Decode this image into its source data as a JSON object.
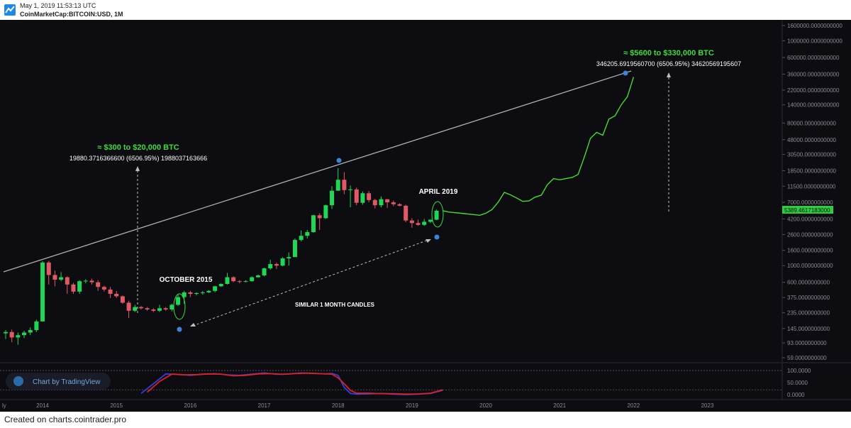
{
  "header": {
    "timestamp": "May 1, 2019 11:53:13 UTC",
    "symbol": "CoinMarketCap:BITCOIN:USD, 1M"
  },
  "footer": {
    "text": "Created on charts.cointrader.pro"
  },
  "watermark": {
    "label": "Chart by TradingView"
  },
  "colors": {
    "background": "#0c0c11",
    "up_candle": "#1fd655",
    "down_candle": "#e05a66",
    "projection": "#44dd2c",
    "trendline": "#b0b0b0",
    "marker": "#3f83d6",
    "annotation_green": "#3ddc3d",
    "stoch_k": "#2f3fe0",
    "stoch_d": "#e02020",
    "price_label": "#2ecc40"
  },
  "chart_data": {
    "type": "candlestick",
    "scale": "log",
    "y_axis_labels": [
      "1600000.0000000000",
      "1000000.0000000000",
      "600000.0000000000",
      "360000.0000000000",
      "220000.0000000000",
      "140000.0000000000",
      "80000.0000000000",
      "48000.0000000000",
      "30500.0000000000",
      "18500.0000000000",
      "11500.0000000000",
      "7000.0000000000",
      "4200.0000000000",
      "2600.0000000000",
      "1600.0000000000",
      "1000.0000000000",
      "600.0000000000",
      "375.0000000000",
      "235.0000000000",
      "145.0000000000",
      "93.0000000000",
      "59.0000000000"
    ],
    "x_axis_labels": [
      "2014",
      "2015",
      "2016",
      "2017",
      "2018",
      "2019",
      "2020",
      "2021",
      "2022",
      "2023"
    ],
    "x_left_partial_label": "ly",
    "last_price_label": "5389.4617183000",
    "annotations": {
      "top_right_title": "≈ $5600 to $330,000 BTC",
      "top_right_measure": "346205.6919560700 (6506.95%) 34620569195607",
      "left_title": "≈ $300 to $20,000 BTC",
      "left_measure": "19880.3716366600 (6506.95%) 1988037163666",
      "october_2015": "OCTOBER 2015",
      "april_2019": "APRIL 2019",
      "similar_candles": "SIMILAR 1 MONTH CANDLES"
    },
    "candles": [
      {
        "o": 125,
        "h": 138,
        "l": 105,
        "c": 130
      },
      {
        "o": 130,
        "h": 140,
        "l": 95,
        "c": 110
      },
      {
        "o": 110,
        "h": 128,
        "l": 88,
        "c": 118
      },
      {
        "o": 118,
        "h": 135,
        "l": 108,
        "c": 128
      },
      {
        "o": 128,
        "h": 150,
        "l": 118,
        "c": 138
      },
      {
        "o": 138,
        "h": 190,
        "l": 130,
        "c": 180
      },
      {
        "o": 180,
        "h": 1150,
        "l": 180,
        "c": 1100
      },
      {
        "o": 1100,
        "h": 1160,
        "l": 560,
        "c": 750
      },
      {
        "o": 750,
        "h": 860,
        "l": 530,
        "c": 650
      },
      {
        "o": 650,
        "h": 820,
        "l": 620,
        "c": 700
      },
      {
        "o": 700,
        "h": 720,
        "l": 420,
        "c": 560
      },
      {
        "o": 560,
        "h": 590,
        "l": 420,
        "c": 450
      },
      {
        "o": 450,
        "h": 640,
        "l": 420,
        "c": 620
      },
      {
        "o": 620,
        "h": 660,
        "l": 580,
        "c": 630
      },
      {
        "o": 630,
        "h": 670,
        "l": 560,
        "c": 600
      },
      {
        "o": 600,
        "h": 640,
        "l": 460,
        "c": 520
      },
      {
        "o": 520,
        "h": 540,
        "l": 450,
        "c": 480
      },
      {
        "o": 480,
        "h": 520,
        "l": 370,
        "c": 420
      },
      {
        "o": 420,
        "h": 460,
        "l": 370,
        "c": 390
      },
      {
        "o": 390,
        "h": 400,
        "l": 310,
        "c": 320
      },
      {
        "o": 320,
        "h": 340,
        "l": 200,
        "c": 250
      },
      {
        "o": 250,
        "h": 300,
        "l": 240,
        "c": 280
      },
      {
        "o": 280,
        "h": 290,
        "l": 260,
        "c": 270
      },
      {
        "o": 270,
        "h": 280,
        "l": 250,
        "c": 260
      },
      {
        "o": 260,
        "h": 270,
        "l": 240,
        "c": 250
      },
      {
        "o": 250,
        "h": 300,
        "l": 240,
        "c": 270
      },
      {
        "o": 270,
        "h": 280,
        "l": 250,
        "c": 260
      },
      {
        "o": 260,
        "h": 310,
        "l": 245,
        "c": 300
      },
      {
        "o": 300,
        "h": 420,
        "l": 290,
        "c": 380
      },
      {
        "o": 380,
        "h": 460,
        "l": 310,
        "c": 440
      },
      {
        "o": 440,
        "h": 460,
        "l": 380,
        "c": 420
      },
      {
        "o": 420,
        "h": 440,
        "l": 400,
        "c": 430
      },
      {
        "o": 430,
        "h": 460,
        "l": 410,
        "c": 440
      },
      {
        "o": 440,
        "h": 470,
        "l": 430,
        "c": 460
      },
      {
        "o": 460,
        "h": 540,
        "l": 440,
        "c": 530
      },
      {
        "o": 530,
        "h": 580,
        "l": 520,
        "c": 570
      },
      {
        "o": 570,
        "h": 800,
        "l": 560,
        "c": 700
      },
      {
        "o": 700,
        "h": 720,
        "l": 600,
        "c": 620
      },
      {
        "o": 620,
        "h": 640,
        "l": 580,
        "c": 610
      },
      {
        "o": 610,
        "h": 640,
        "l": 600,
        "c": 620
      },
      {
        "o": 620,
        "h": 720,
        "l": 610,
        "c": 700
      },
      {
        "o": 700,
        "h": 760,
        "l": 690,
        "c": 740
      },
      {
        "o": 740,
        "h": 940,
        "l": 720,
        "c": 920
      },
      {
        "o": 920,
        "h": 1200,
        "l": 880,
        "c": 1050
      },
      {
        "o": 1050,
        "h": 1100,
        "l": 900,
        "c": 1000
      },
      {
        "o": 1000,
        "h": 1300,
        "l": 980,
        "c": 1250
      },
      {
        "o": 1250,
        "h": 1500,
        "l": 1000,
        "c": 1300
      },
      {
        "o": 1300,
        "h": 2300,
        "l": 1300,
        "c": 2200
      },
      {
        "o": 2200,
        "h": 2950,
        "l": 2100,
        "c": 2500
      },
      {
        "o": 2500,
        "h": 3000,
        "l": 2300,
        "c": 2800
      },
      {
        "o": 2800,
        "h": 4800,
        "l": 2750,
        "c": 4700
      },
      {
        "o": 4700,
        "h": 5000,
        "l": 3000,
        "c": 4300
      },
      {
        "o": 4300,
        "h": 6500,
        "l": 4200,
        "c": 6400
      },
      {
        "o": 6400,
        "h": 11500,
        "l": 5700,
        "c": 10000
      },
      {
        "o": 10000,
        "h": 20000,
        "l": 10000,
        "c": 14000
      },
      {
        "o": 14000,
        "h": 17700,
        "l": 9000,
        "c": 10200
      },
      {
        "o": 10200,
        "h": 11700,
        "l": 6000,
        "c": 10400
      },
      {
        "o": 10400,
        "h": 11000,
        "l": 6400,
        "c": 6900
      },
      {
        "o": 6900,
        "h": 9800,
        "l": 6500,
        "c": 9250
      },
      {
        "o": 9250,
        "h": 9900,
        "l": 7000,
        "c": 7500
      },
      {
        "o": 7500,
        "h": 7800,
        "l": 5800,
        "c": 6400
      },
      {
        "o": 6400,
        "h": 8400,
        "l": 6000,
        "c": 7700
      },
      {
        "o": 7700,
        "h": 7700,
        "l": 5900,
        "c": 7000
      },
      {
        "o": 7000,
        "h": 7400,
        "l": 6200,
        "c": 6600
      },
      {
        "o": 6600,
        "h": 6800,
        "l": 6200,
        "c": 6300
      },
      {
        "o": 6300,
        "h": 6500,
        "l": 3800,
        "c": 4000
      },
      {
        "o": 4000,
        "h": 4300,
        "l": 3200,
        "c": 3700
      },
      {
        "o": 3700,
        "h": 4100,
        "l": 3400,
        "c": 3500
      },
      {
        "o": 3500,
        "h": 4200,
        "l": 3400,
        "c": 3850
      },
      {
        "o": 3850,
        "h": 4100,
        "l": 3700,
        "c": 4100
      },
      {
        "o": 4100,
        "h": 5600,
        "l": 4050,
        "c": 5400
      }
    ],
    "projection": [
      [
        71,
        5400
      ],
      [
        72,
        5200
      ],
      [
        74,
        5000
      ],
      [
        76,
        4800
      ],
      [
        77,
        4700
      ],
      [
        78,
        5000
      ],
      [
        79,
        5600
      ],
      [
        80,
        7000
      ],
      [
        81,
        9500
      ],
      [
        82,
        8800
      ],
      [
        83,
        8000
      ],
      [
        84,
        7200
      ],
      [
        85,
        7300
      ],
      [
        86,
        8200
      ],
      [
        87,
        8700
      ],
      [
        88,
        12000
      ],
      [
        89,
        14500
      ],
      [
        90,
        14000
      ],
      [
        91,
        14500
      ],
      [
        92,
        15000
      ],
      [
        93,
        16500
      ],
      [
        94,
        28000
      ],
      [
        95,
        50000
      ],
      [
        96,
        60000
      ],
      [
        97,
        55000
      ],
      [
        98,
        90000
      ],
      [
        99,
        100000
      ],
      [
        100,
        140000
      ],
      [
        101,
        180000
      ],
      [
        102,
        330000
      ]
    ],
    "stoch_k": [
      [
        22,
        0.05
      ],
      [
        24,
        0.45
      ],
      [
        26,
        0.86
      ],
      [
        28,
        0.84
      ],
      [
        30,
        0.8
      ],
      [
        32,
        0.85
      ],
      [
        34,
        0.87
      ],
      [
        36,
        0.82
      ],
      [
        38,
        0.8
      ],
      [
        40,
        0.85
      ],
      [
        42,
        0.9
      ],
      [
        44,
        0.84
      ],
      [
        46,
        0.86
      ],
      [
        48,
        0.9
      ],
      [
        50,
        0.88
      ],
      [
        52,
        0.86
      ],
      [
        53,
        0.88
      ],
      [
        54,
        0.8
      ],
      [
        55,
        0.3
      ],
      [
        56,
        0.05
      ],
      [
        57,
        0.02
      ],
      [
        59,
        0.03
      ],
      [
        61,
        0.05
      ],
      [
        63,
        0.02
      ],
      [
        65,
        0.0
      ],
      [
        67,
        0.02
      ],
      [
        69,
        0.05
      ],
      [
        71,
        0.18
      ]
    ],
    "stoch_d": [
      [
        23,
        0.1
      ],
      [
        25,
        0.55
      ],
      [
        27,
        0.85
      ],
      [
        29,
        0.82
      ],
      [
        31,
        0.83
      ],
      [
        33,
        0.86
      ],
      [
        35,
        0.85
      ],
      [
        37,
        0.78
      ],
      [
        39,
        0.8
      ],
      [
        41,
        0.86
      ],
      [
        43,
        0.87
      ],
      [
        45,
        0.84
      ],
      [
        47,
        0.87
      ],
      [
        49,
        0.89
      ],
      [
        51,
        0.87
      ],
      [
        53,
        0.85
      ],
      [
        54,
        0.7
      ],
      [
        55,
        0.45
      ],
      [
        56,
        0.18
      ],
      [
        57,
        0.06
      ],
      [
        59,
        0.06
      ],
      [
        61,
        0.04
      ],
      [
        63,
        0.04
      ],
      [
        65,
        0.02
      ],
      [
        67,
        0.03
      ],
      [
        69,
        0.06
      ],
      [
        71,
        0.2
      ]
    ],
    "stoch_levels": [
      "100.0000",
      "50.0000",
      "0.0000"
    ]
  }
}
